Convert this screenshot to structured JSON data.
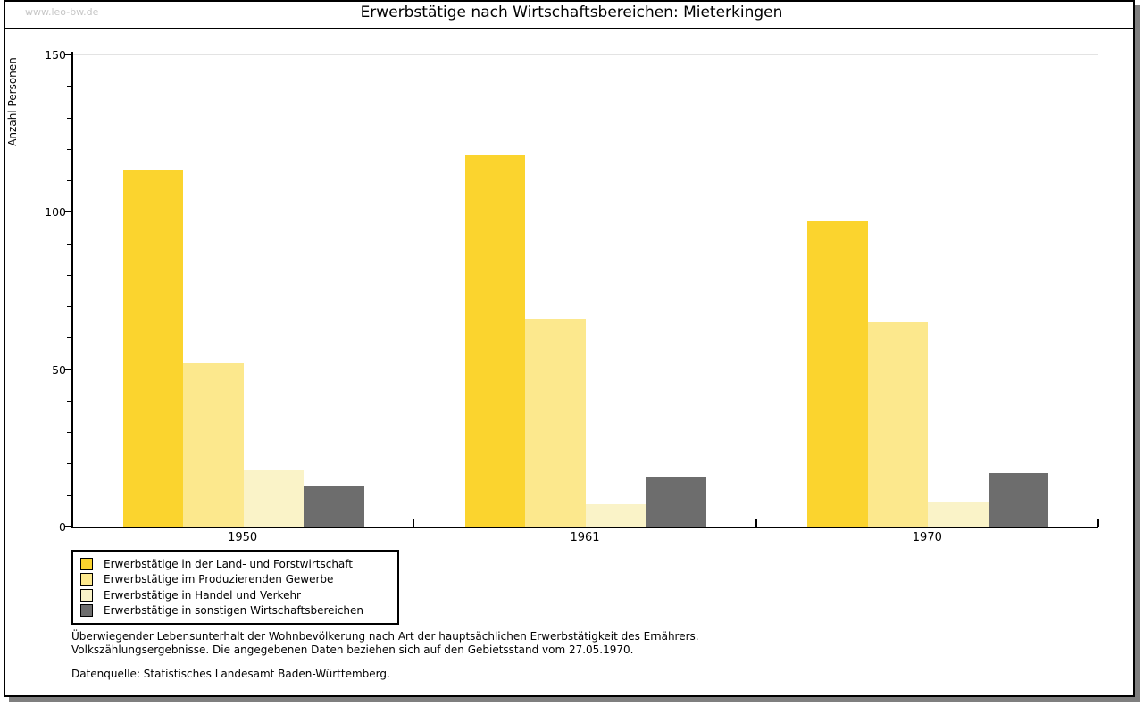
{
  "window": {
    "watermark": "www.leo-bw.de"
  },
  "chart_data": {
    "type": "bar",
    "title": "Erwerbstätige nach Wirtschaftsbereichen: Mieterkingen",
    "categories": [
      "1950",
      "1961",
      "1970"
    ],
    "series": [
      {
        "name": "Erwerbstätige in der Land- und Forstwirtschaft",
        "color": "#fbd42e",
        "values": [
          113,
          118,
          97
        ]
      },
      {
        "name": "Erwerbstätige im Produzierenden Gewerbe",
        "color": "#fce88d",
        "values": [
          52,
          66,
          65
        ]
      },
      {
        "name": "Erwerbstätige in Handel und Verkehr",
        "color": "#faf3c8",
        "values": [
          18,
          7,
          8
        ]
      },
      {
        "name": "Erwerbstätige in sonstigen Wirtschaftsbereichen",
        "color": "#6d6d6d",
        "values": [
          13,
          16,
          17
        ]
      }
    ],
    "xlabel": "",
    "ylabel": "Anzahl Personen",
    "ylim": [
      0,
      150
    ],
    "yticks_major": [
      0,
      50,
      100,
      150
    ],
    "ytick_minor_step": 10,
    "grid": true,
    "legend_position": "bottom-left"
  },
  "footer": {
    "note_line1": "Überwiegender Lebensunterhalt der Wohnbevölkerung nach Art der hauptsächlichen Erwerbstätigkeit des Ernährers.",
    "note_line2": "Volkszählungsergebnisse. Die angegebenen Daten beziehen sich auf den Gebietsstand vom 27.05.1970.",
    "source": "Datenquelle: Statistisches Landesamt Baden-Württemberg."
  },
  "colors": {
    "axis": "#000000",
    "gridline": "#e3e3e3",
    "watermark_text": "#c6c6c6",
    "frame_shadow": "#7f7f7f"
  }
}
